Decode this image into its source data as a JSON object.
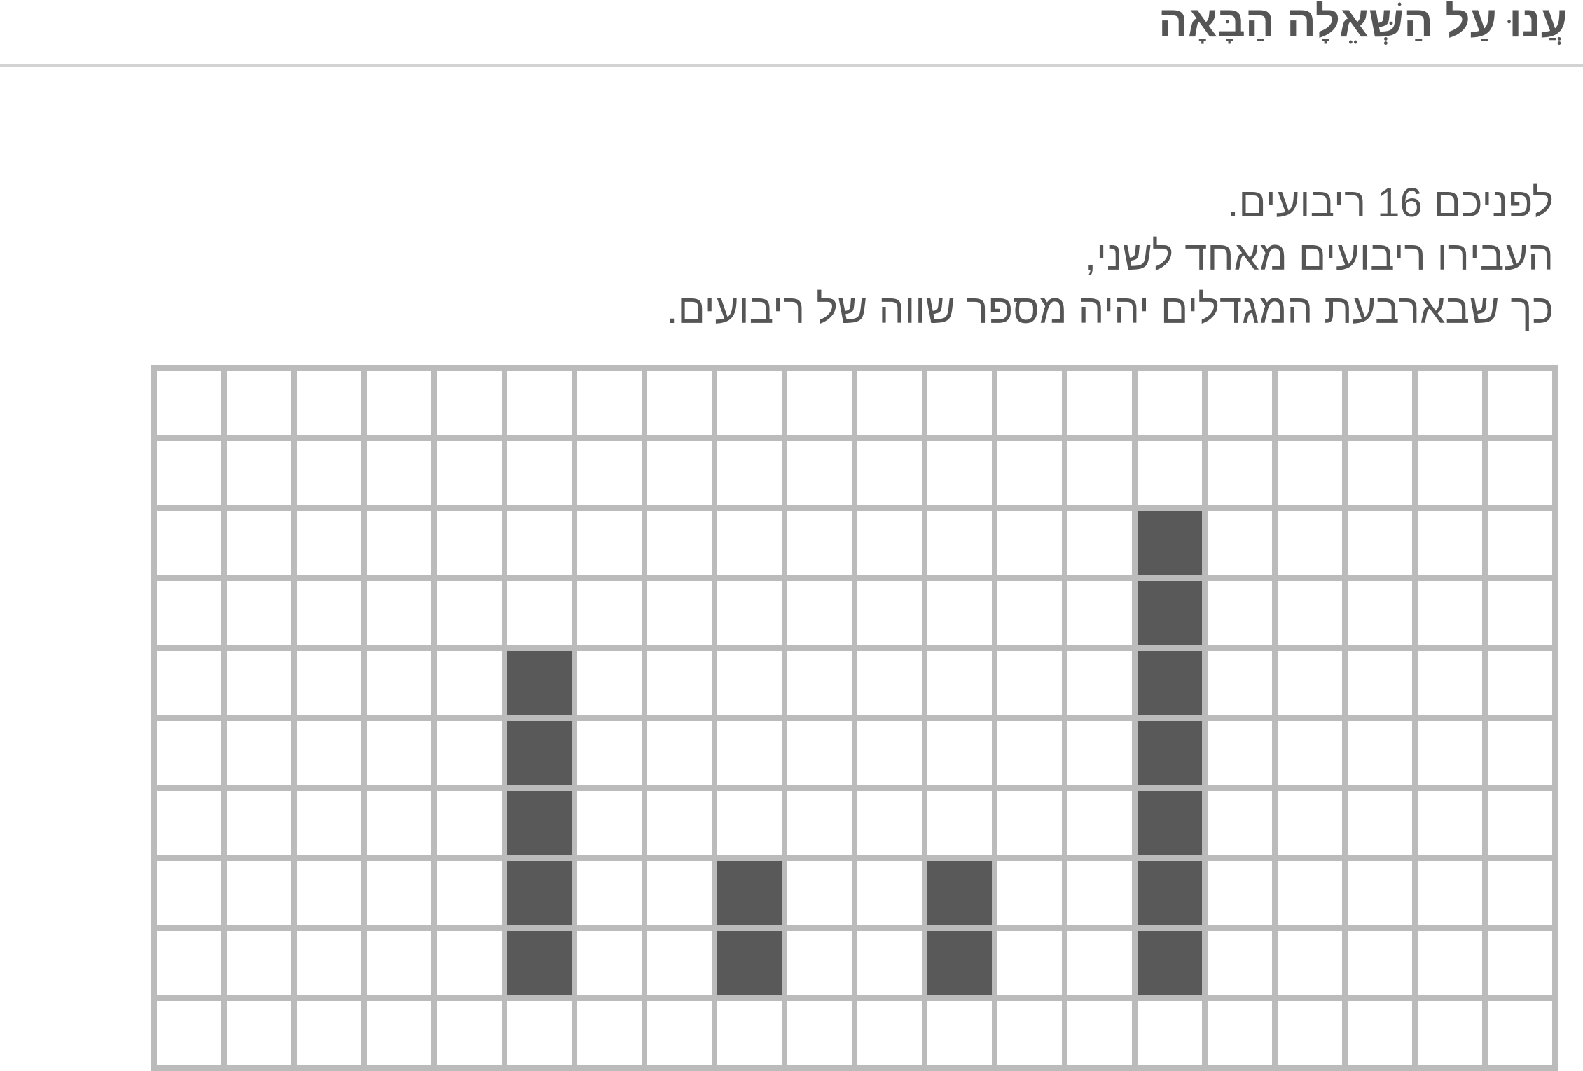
{
  "header": {
    "title": "עֲנוּ עַל הַשְּׁאֵלָה הַבָּאָה"
  },
  "question": {
    "lines": [
      "לפניכם 16 ריבועים.",
      "העבירו ריבועים מאחד לשני,",
      "כך שבארבעת המגדלים יהיה מספר שווה של ריבועים."
    ]
  },
  "grid": {
    "columns": 20,
    "rows": 10,
    "line_color": "#bbbbbb",
    "fill_color": "#595959",
    "filled_cells": [
      [
        4,
        5
      ],
      [
        5,
        5
      ],
      [
        6,
        5
      ],
      [
        7,
        5
      ],
      [
        8,
        5
      ],
      [
        7,
        8
      ],
      [
        8,
        8
      ],
      [
        7,
        11
      ],
      [
        8,
        11
      ],
      [
        2,
        14
      ],
      [
        3,
        14
      ],
      [
        4,
        14
      ],
      [
        5,
        14
      ],
      [
        6,
        14
      ],
      [
        7,
        14
      ],
      [
        8,
        14
      ]
    ]
  }
}
